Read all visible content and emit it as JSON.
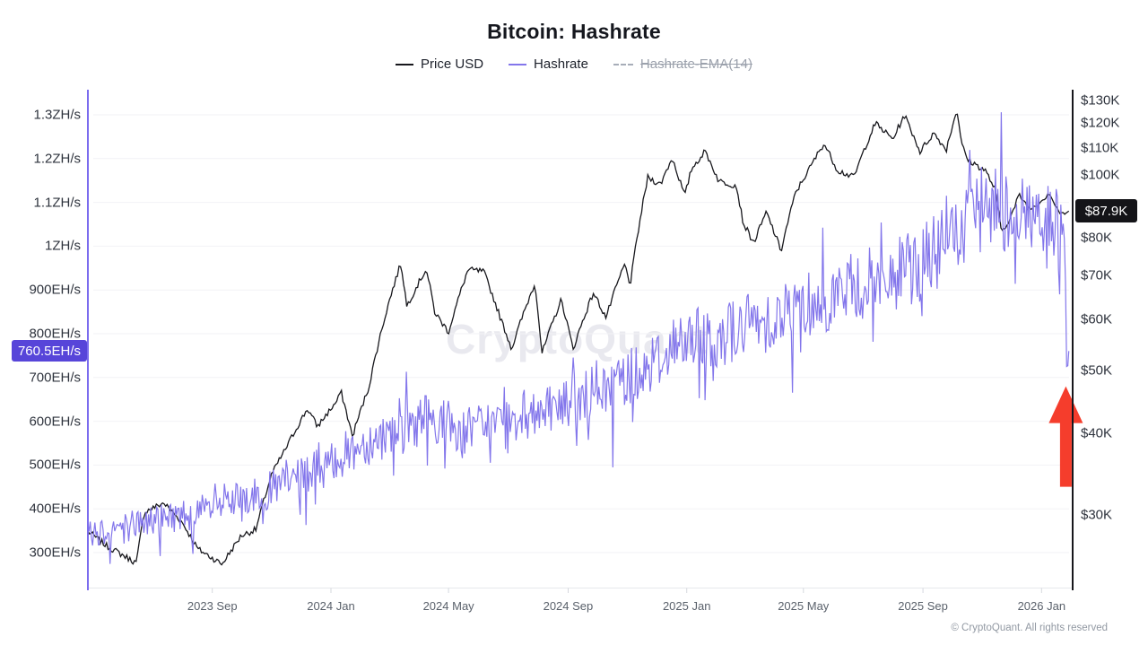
{
  "chart": {
    "title": "Bitcoin: Hashrate",
    "watermark": "CryptoQuant",
    "legend": {
      "items": [
        {
          "label": "Price USD",
          "color": "#17171c",
          "style": "solid",
          "enabled": true
        },
        {
          "label": "Hashrate",
          "color": "#8376eb",
          "style": "solid",
          "enabled": true
        },
        {
          "label": "Hashrate-EMA(14)",
          "color": "#9ba1ac",
          "style": "dashed",
          "enabled": false
        }
      ]
    }
  },
  "chart_data": {
    "type": "line",
    "title": "Bitcoin: Hashrate",
    "grid": "horizontal",
    "legend_position": "top",
    "x_axis": {
      "range": [
        "2023-04-26",
        "2026-02-02"
      ],
      "ticks": [
        {
          "label": "2023 Sep",
          "date": "2023-09-01"
        },
        {
          "label": "2024 Jan",
          "date": "2024-01-01"
        },
        {
          "label": "2024 May",
          "date": "2024-05-01"
        },
        {
          "label": "2024 Sep",
          "date": "2024-09-01"
        },
        {
          "label": "2025 Jan",
          "date": "2025-01-01"
        },
        {
          "label": "2025 May",
          "date": "2025-05-01"
        },
        {
          "label": "2025 Sep",
          "date": "2025-09-01"
        },
        {
          "label": "2026 Jan",
          "date": "2026-01-01"
        }
      ]
    },
    "left_axis": {
      "series": "Hashrate",
      "scale": "linear",
      "unit": "EH/s",
      "domain": [
        220,
        1360
      ],
      "ticks": [
        {
          "label": "1.3ZH/s",
          "value": 1300
        },
        {
          "label": "1.2ZH/s",
          "value": 1200
        },
        {
          "label": "1.1ZH/s",
          "value": 1100
        },
        {
          "label": "1ZH/s",
          "value": 1000
        },
        {
          "label": "900EH/s",
          "value": 900
        },
        {
          "label": "800EH/s",
          "value": 800
        },
        {
          "label": "700EH/s",
          "value": 700
        },
        {
          "label": "600EH/s",
          "value": 600
        },
        {
          "label": "500EH/s",
          "value": 500
        },
        {
          "label": "400EH/s",
          "value": 400
        },
        {
          "label": "300EH/s",
          "value": 300
        }
      ],
      "current": {
        "label": "760.5EH/s",
        "value": 760.5,
        "badge_color": "#5745d9"
      }
    },
    "right_axis": {
      "series": "Price USD",
      "scale": "log",
      "unit": "USD",
      "domain": [
        23200,
        134900
      ],
      "ticks": [
        {
          "label": "$130K",
          "value": 130000
        },
        {
          "label": "$120K",
          "value": 120000
        },
        {
          "label": "$110K",
          "value": 110000
        },
        {
          "label": "$100K",
          "value": 100000
        },
        {
          "label": "$80K",
          "value": 80000
        },
        {
          "label": "$70K",
          "value": 70000
        },
        {
          "label": "$60K",
          "value": 60000
        },
        {
          "label": "$50K",
          "value": 50000
        },
        {
          "label": "$40K",
          "value": 40000
        },
        {
          "label": "$30K",
          "value": 30000
        }
      ],
      "current": {
        "label": "$87.9K",
        "value": 87900,
        "badge_color": "#141418"
      }
    },
    "series": [
      {
        "name": "Price USD",
        "axis": "right",
        "color": "#17171c",
        "points": [
          [
            "2023-04-26",
            28300
          ],
          [
            "2023-05-15",
            26900
          ],
          [
            "2023-06-15",
            25300
          ],
          [
            "2023-06-23",
            30300
          ],
          [
            "2023-07-13",
            31300
          ],
          [
            "2023-08-01",
            29200
          ],
          [
            "2023-08-17",
            26600
          ],
          [
            "2023-09-11",
            25200
          ],
          [
            "2023-10-01",
            27900
          ],
          [
            "2023-10-16",
            28500
          ],
          [
            "2023-11-01",
            34600
          ],
          [
            "2023-11-15",
            37800
          ],
          [
            "2023-12-08",
            43700
          ],
          [
            "2023-12-18",
            41000
          ],
          [
            "2024-01-08",
            45000
          ],
          [
            "2024-01-11",
            46600
          ],
          [
            "2024-01-23",
            39600
          ],
          [
            "2024-02-09",
            47100
          ],
          [
            "2024-02-28",
            62400
          ],
          [
            "2024-03-13",
            73100
          ],
          [
            "2024-03-19",
            62800
          ],
          [
            "2024-04-08",
            71600
          ],
          [
            "2024-04-17",
            61300
          ],
          [
            "2024-05-01",
            57300
          ],
          [
            "2024-05-21",
            71400
          ],
          [
            "2024-06-06",
            71000
          ],
          [
            "2024-06-24",
            59800
          ],
          [
            "2024-07-05",
            54000
          ],
          [
            "2024-07-29",
            68200
          ],
          [
            "2024-08-05",
            53000
          ],
          [
            "2024-08-25",
            64200
          ],
          [
            "2024-09-06",
            53900
          ],
          [
            "2024-09-27",
            65800
          ],
          [
            "2024-10-10",
            60300
          ],
          [
            "2024-10-29",
            72700
          ],
          [
            "2024-11-04",
            67800
          ],
          [
            "2024-11-22",
            99000
          ],
          [
            "2024-12-05",
            96600
          ],
          [
            "2024-12-17",
            106100
          ],
          [
            "2024-12-30",
            92600
          ],
          [
            "2025-01-06",
            102100
          ],
          [
            "2025-01-20",
            108600
          ],
          [
            "2025-02-03",
            97700
          ],
          [
            "2025-02-21",
            96200
          ],
          [
            "2025-02-28",
            84300
          ],
          [
            "2025-03-11",
            78500
          ],
          [
            "2025-03-24",
            87500
          ],
          [
            "2025-04-08",
            76300
          ],
          [
            "2025-04-23",
            93700
          ],
          [
            "2025-05-09",
            103200
          ],
          [
            "2025-05-22",
            111700
          ],
          [
            "2025-06-05",
            101600
          ],
          [
            "2025-06-22",
            99000
          ],
          [
            "2025-07-03",
            109600
          ],
          [
            "2025-07-14",
            119900
          ],
          [
            "2025-08-01",
            113300
          ],
          [
            "2025-08-13",
            123300
          ],
          [
            "2025-08-29",
            108400
          ],
          [
            "2025-09-12",
            115800
          ],
          [
            "2025-09-25",
            109200
          ],
          [
            "2025-10-06",
            125900
          ],
          [
            "2025-10-11",
            111000
          ],
          [
            "2025-10-17",
            105300
          ],
          [
            "2025-11-04",
            101500
          ],
          [
            "2025-11-14",
            95000
          ],
          [
            "2025-11-21",
            81500
          ],
          [
            "2025-12-01",
            86500
          ],
          [
            "2025-12-09",
            93000
          ],
          [
            "2025-12-20",
            88500
          ],
          [
            "2026-01-02",
            91500
          ],
          [
            "2026-01-09",
            94000
          ],
          [
            "2026-01-16",
            89000
          ],
          [
            "2026-01-23",
            86500
          ],
          [
            "2026-01-29",
            87900
          ]
        ]
      },
      {
        "name": "Hashrate",
        "axis": "left",
        "color": "#8376eb",
        "points": [
          [
            "2023-04-26",
            345
          ],
          [
            "2023-06-01",
            360
          ],
          [
            "2023-07-15",
            380
          ],
          [
            "2023-09-01",
            400
          ],
          [
            "2023-10-15",
            430
          ],
          [
            "2023-12-01",
            470
          ],
          [
            "2024-01-01",
            510
          ],
          [
            "2024-02-15",
            560
          ],
          [
            "2024-04-01",
            600
          ],
          [
            "2024-04-25",
            605
          ],
          [
            "2024-05-10",
            578
          ],
          [
            "2024-06-15",
            590
          ],
          [
            "2024-07-15",
            615
          ],
          [
            "2024-09-01",
            640
          ],
          [
            "2024-10-15",
            680
          ],
          [
            "2024-12-01",
            740
          ],
          [
            "2025-01-01",
            780
          ],
          [
            "2025-02-15",
            805
          ],
          [
            "2025-04-01",
            840
          ],
          [
            "2025-05-15",
            878
          ],
          [
            "2025-07-01",
            910
          ],
          [
            "2025-08-15",
            942
          ],
          [
            "2025-09-15",
            985
          ],
          [
            "2025-10-15",
            1040
          ],
          [
            "2025-11-15",
            1090
          ],
          [
            "2025-12-10",
            1072
          ],
          [
            "2026-01-10",
            1060
          ],
          [
            "2026-01-25",
            1015
          ],
          [
            "2026-01-27",
            693
          ],
          [
            "2026-01-29",
            760.5
          ]
        ],
        "last_value": 760.5,
        "noise": {
          "amp_base": 6,
          "amp_frac": 0.085,
          "down_spike_prob": 0.045,
          "up_spike_prob": 0.035,
          "forced_peak": {
            "date": "2025-11-20",
            "value": 1306
          },
          "noise_end": "2026-01-24"
        }
      },
      {
        "name": "Hashrate-EMA(14)",
        "axis": "left",
        "color": "#9ba1ac",
        "disabled": true,
        "points": []
      }
    ],
    "annotations": [
      {
        "type": "arrow-up",
        "color": "#f53d2c",
        "note": "points at hashrate drop to 760.5EH/s",
        "tip": {
          "date": "2026-01-26",
          "value": 680
        }
      }
    ]
  },
  "footer": {
    "copyright": "© CryptoQuant. All rights reserved"
  }
}
